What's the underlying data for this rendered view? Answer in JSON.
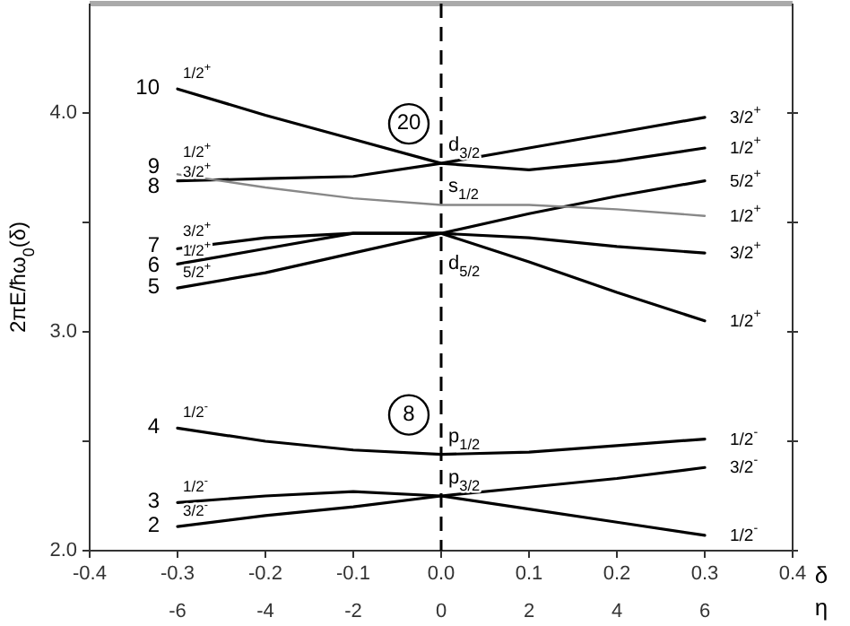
{
  "chart_data": {
    "type": "line",
    "xlabel": "δ",
    "x2label": "η",
    "ylabel": "2πE/ħω$_{0}$(δ)",
    "xlim": [
      -0.4,
      0.4
    ],
    "xticks": [
      {
        "value": -0.4,
        "label": "-0.4"
      },
      {
        "value": -0.3,
        "label": "-0.3"
      },
      {
        "value": -0.2,
        "label": "-0.2"
      },
      {
        "value": -0.1,
        "label": "-0.1"
      },
      {
        "value": 0,
        "label": "0.0"
      },
      {
        "value": 0.1,
        "label": "0.1"
      },
      {
        "value": 0.2,
        "label": "0.2"
      },
      {
        "value": 0.3,
        "label": "0.3"
      },
      {
        "value": 0.4,
        "label": "0.4"
      }
    ],
    "x2lim": [
      -8,
      8
    ],
    "x2ticks": [
      -6,
      -4,
      -2,
      0,
      2,
      4,
      6
    ],
    "ylim": [
      2.0,
      4.5
    ],
    "yticks": [
      {
        "value": 2,
        "label": "2.0"
      },
      {
        "value": 2.5,
        "label": null
      },
      {
        "value": 3,
        "label": "3.0"
      },
      {
        "value": 3.5,
        "label": null
      },
      {
        "value": 4,
        "label": "4.0"
      }
    ],
    "x": [
      -0.3,
      -0.2,
      -0.1,
      0,
      0.1,
      0.2,
      0.3
    ],
    "marker": "none",
    "line_style": "solid",
    "series": [
      {
        "name": "2",
        "color": "#000000",
        "values": [
          2.11,
          2.16,
          2.2,
          2.25,
          2.29,
          2.33,
          2.38
        ]
      },
      {
        "name": "3",
        "color": "#000000",
        "values": [
          2.22,
          2.25,
          2.27,
          2.25,
          2.19,
          2.13,
          2.07
        ]
      },
      {
        "name": "4",
        "color": "#000000",
        "values": [
          2.56,
          2.5,
          2.46,
          2.44,
          2.45,
          2.48,
          2.51
        ]
      },
      {
        "name": "5",
        "color": "#000000",
        "values": [
          3.2,
          3.27,
          3.36,
          3.45,
          3.54,
          3.62,
          3.69
        ]
      },
      {
        "name": "6",
        "color": "#000000",
        "values": [
          3.31,
          3.38,
          3.45,
          3.45,
          3.32,
          3.18,
          3.05
        ]
      },
      {
        "name": "7",
        "color": "#000000",
        "values": [
          3.38,
          3.43,
          3.45,
          3.45,
          3.43,
          3.39,
          3.36
        ]
      },
      {
        "name": "8",
        "color": "#000000",
        "values": [
          3.69,
          3.7,
          3.71,
          3.77,
          3.84,
          3.91,
          3.98
        ]
      },
      {
        "name": "9",
        "color": "#888888",
        "values": [
          3.72,
          3.66,
          3.61,
          3.58,
          3.58,
          3.56,
          3.53
        ]
      },
      {
        "name": "10",
        "color": "#000000",
        "values": [
          4.11,
          3.99,
          3.88,
          3.77,
          3.74,
          3.78,
          3.84
        ]
      }
    ],
    "ref_lines": [
      {
        "axis": "x",
        "value": 0,
        "line_style": "dashed",
        "color": "#000000"
      }
    ],
    "annotations": [
      "3/2$^{-}$",
      "1/2$^{-}$",
      "1/2$^{-}$",
      "5/2$^{+}$",
      "1/2$^{+}$",
      "3/2$^{+}$",
      "3/2$^{+}$",
      "1/2$^{+}$",
      "1/2$^{+}$",
      "3/2$^{+}$",
      "1/2$^{+}$",
      "5/2$^{+}$",
      "1/2$^{+}$",
      "3/2$^{+}$",
      "1/2$^{+}$",
      "1/2$^{-}$",
      "3/2$^{-}$",
      "1/2$^{-}$",
      "d$_{3/2}$",
      "s$_{1/2}$",
      "d$_{5/2}$",
      "p$_{1/2}$",
      "p$_{3/2}$",
      "20",
      "8"
    ]
  }
}
